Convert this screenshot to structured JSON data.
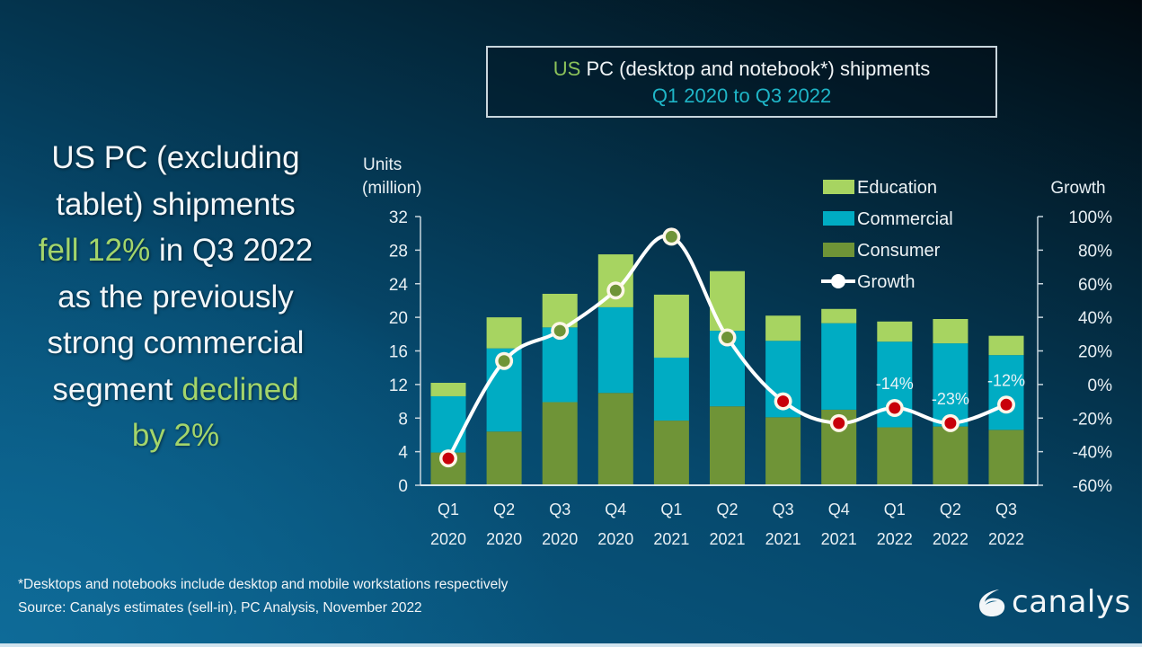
{
  "headline": {
    "line1": "US PC (excluding",
    "line2": "tablet) shipments",
    "line3_green": "fell 12%",
    "line3_rest": " in Q3 2022",
    "line4": "as the previously",
    "line5": "strong commercial",
    "line6_rest": "segment ",
    "line6_green": "declined",
    "line7_green": "by 2%"
  },
  "title_box": {
    "us": "US",
    "line1_rest": " PC (desktop and notebook*) shipments",
    "line2": "Q1 2020 to Q3 2022"
  },
  "footnote": {
    "line1": "*Desktops and notebooks include desktop and mobile workstations respectively",
    "line2": "Source: Canalys estimates (sell-in), PC Analysis, November 2022"
  },
  "logo": {
    "icon": "canalys-swirl-icon",
    "text": "canalys"
  },
  "colors": {
    "education": "#a7d461",
    "commercial": "#00acc3",
    "consumer": "#6f9437",
    "growth_line": "#ffffff",
    "growth_point_positive": "#6f9437",
    "growth_point_negative": "#c8000a",
    "headline_accent": "#a3d56b",
    "subtitle": "#1fb5c7"
  },
  "chart_data": {
    "type": "bar",
    "stacked": true,
    "title": "US PC (desktop and notebook*) shipments",
    "subtitle": "Q1 2020 to Q3 2022",
    "ylabel_line1": "Units",
    "ylabel_line2": "(million)",
    "y2label": "Growth",
    "ylim": [
      0,
      32
    ],
    "yticks": [
      0,
      4,
      8,
      12,
      16,
      20,
      24,
      28,
      32
    ],
    "y2lim": [
      -60,
      100
    ],
    "y2ticks": [
      -60,
      -40,
      -20,
      0,
      20,
      40,
      60,
      80,
      100
    ],
    "y2tick_suffix": "%",
    "grid": false,
    "legend_position": "top-right",
    "categories": [
      [
        "Q1",
        "2020"
      ],
      [
        "Q2",
        "2020"
      ],
      [
        "Q3",
        "2020"
      ],
      [
        "Q4",
        "2020"
      ],
      [
        "Q1",
        "2021"
      ],
      [
        "Q2",
        "2021"
      ],
      [
        "Q3",
        "2021"
      ],
      [
        "Q4",
        "2021"
      ],
      [
        "Q1",
        "2022"
      ],
      [
        "Q2",
        "2022"
      ],
      [
        "Q3",
        "2022"
      ]
    ],
    "series": [
      {
        "name": "Consumer",
        "type": "bar",
        "values": [
          3.9,
          6.4,
          9.9,
          11.0,
          7.7,
          9.4,
          8.1,
          9.0,
          6.9,
          7.0,
          6.6
        ]
      },
      {
        "name": "Commercial",
        "type": "bar",
        "values": [
          6.7,
          9.9,
          8.9,
          10.2,
          7.5,
          9.0,
          9.1,
          10.3,
          10.2,
          9.9,
          8.9
        ]
      },
      {
        "name": "Education",
        "type": "bar",
        "values": [
          1.6,
          3.7,
          4.0,
          6.3,
          7.5,
          7.1,
          3.0,
          1.7,
          2.4,
          2.9,
          2.3
        ]
      },
      {
        "name": "Growth",
        "type": "line",
        "axis": "right",
        "unit": "%",
        "values": [
          -44,
          14,
          32,
          56,
          88,
          28,
          -10,
          -23,
          -14,
          -23,
          -12
        ]
      }
    ],
    "legend": [
      "Education",
      "Commercial",
      "Consumer",
      "Growth"
    ],
    "data_labels": [
      {
        "index": 8,
        "text": "-14%"
      },
      {
        "index": 9,
        "text": "-23%"
      },
      {
        "index": 10,
        "text": "-12%"
      }
    ]
  }
}
